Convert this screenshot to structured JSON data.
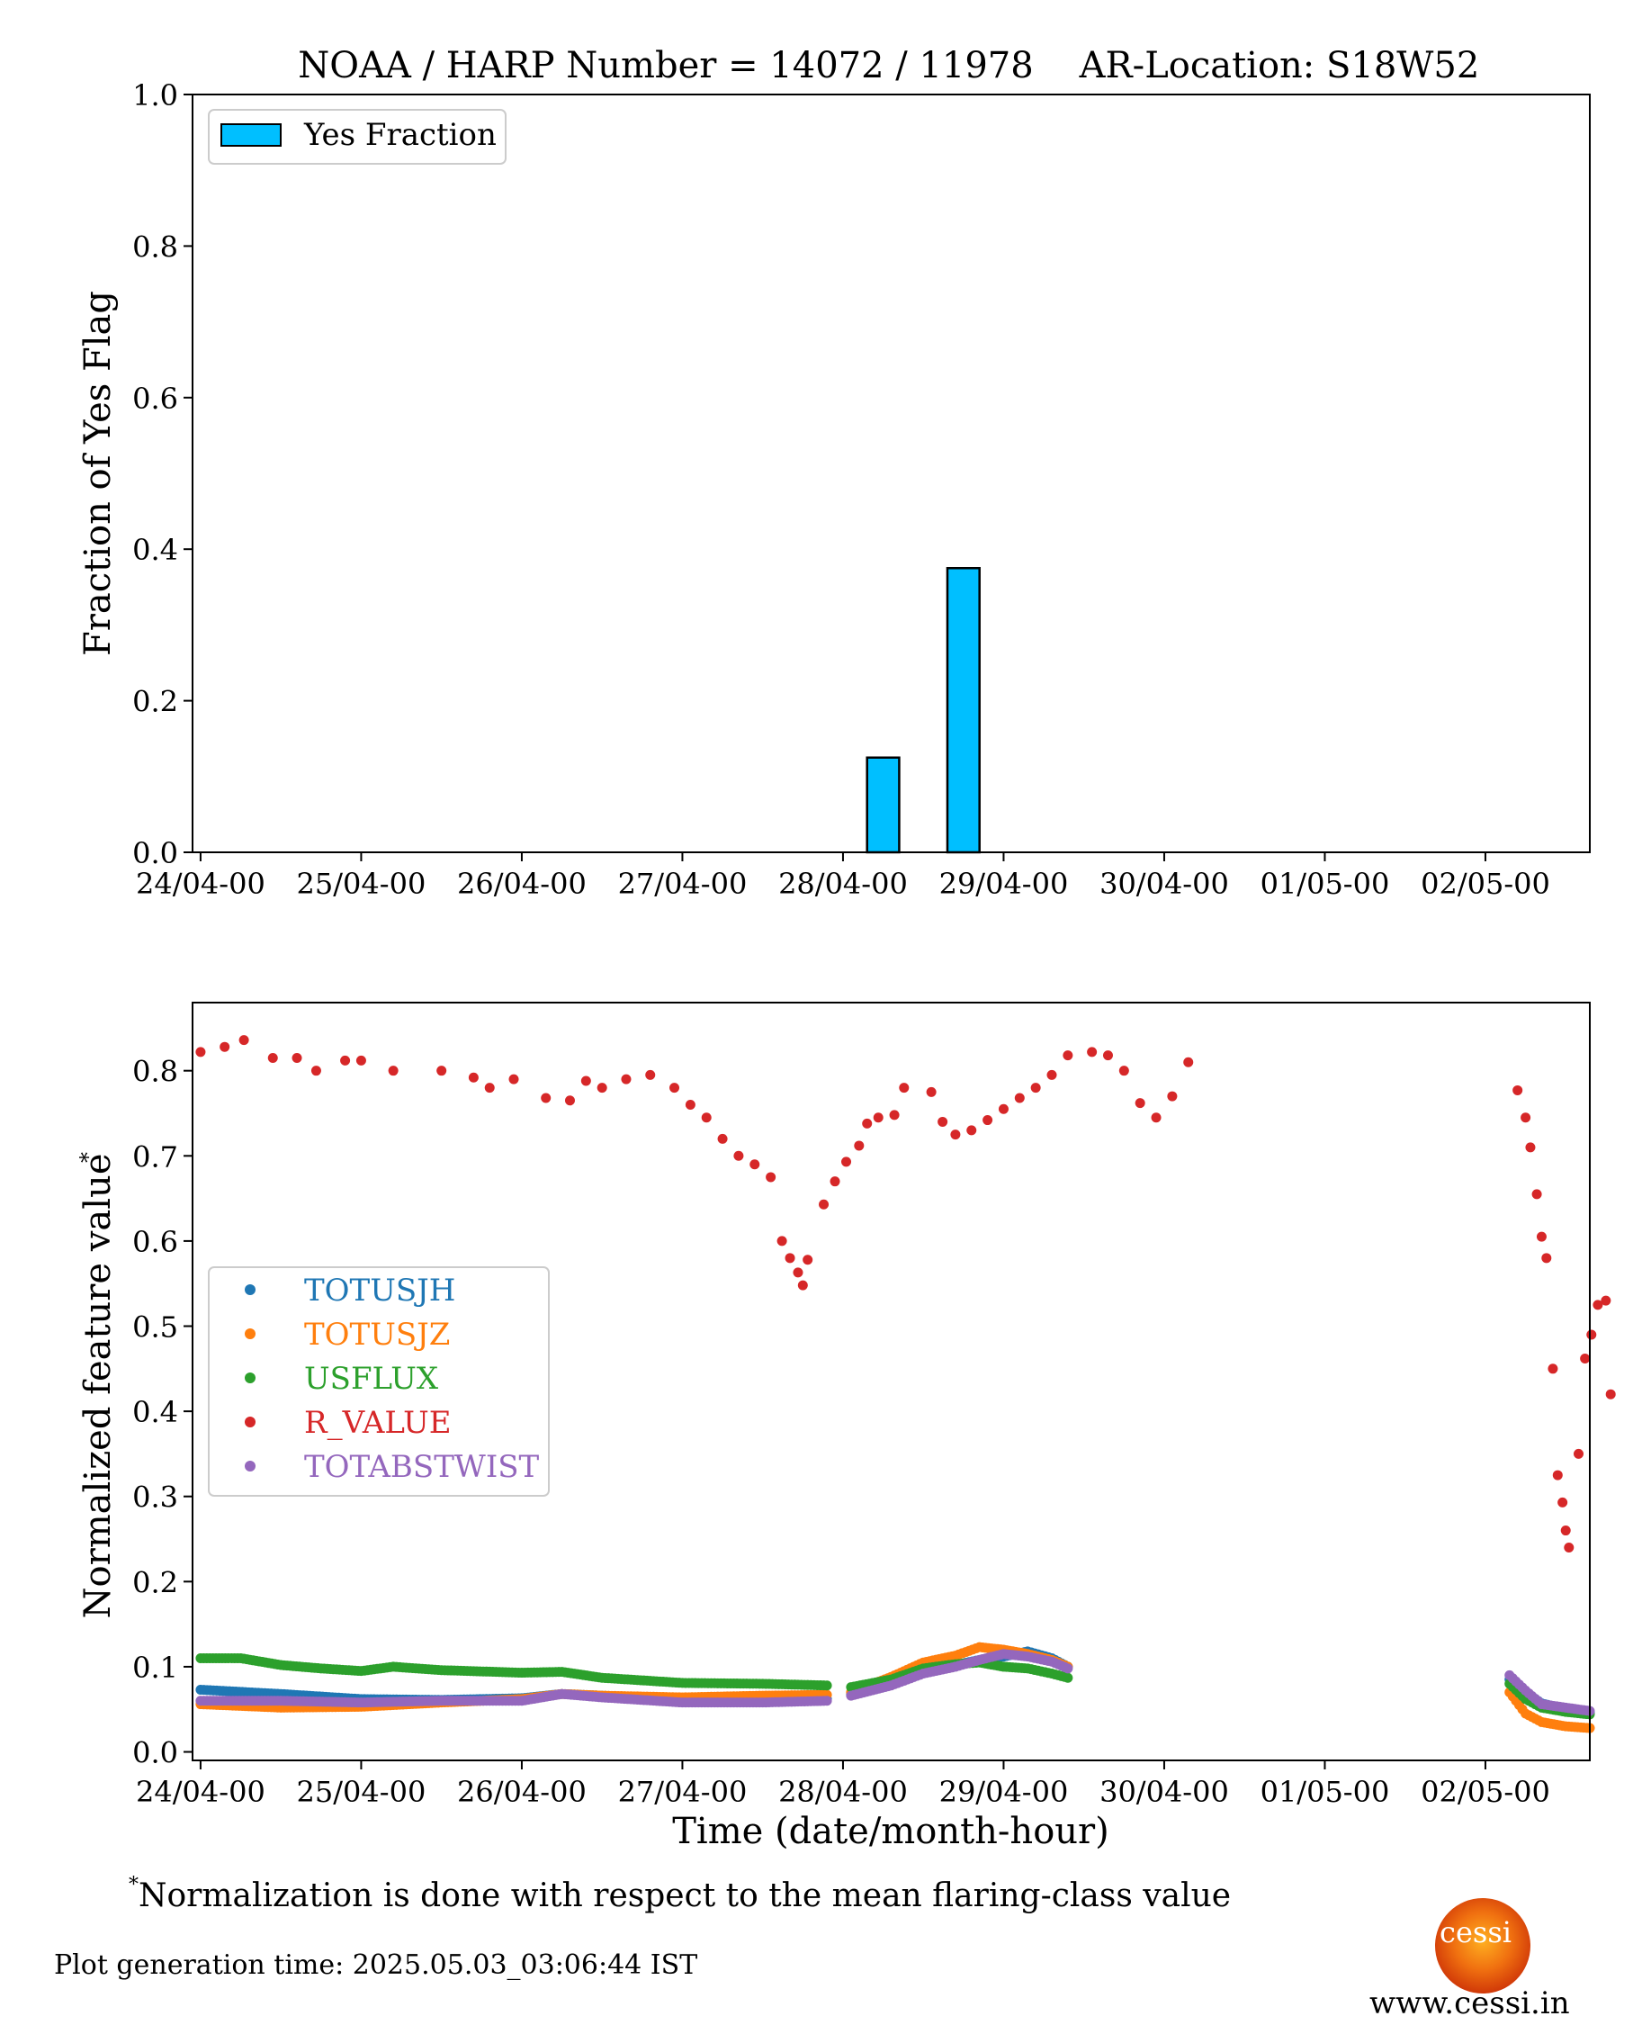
{
  "footnote": {
    "marker": "*",
    "text": "Normalization is done with respect to the mean flaring-class value"
  },
  "generation_time": "Plot generation time: 2025.05.03_03:06:44 IST",
  "logo": {
    "text": "cessi",
    "website": "www.cessi.in"
  },
  "chart_data": [
    {
      "type": "bar",
      "title_left": "NOAA / HARP Number = 14072 / 11978",
      "title_right": "AR-Location: S18W52",
      "ylabel": "Fraction of Yes Flag",
      "xlabel": "",
      "ylim": [
        0,
        1.0
      ],
      "yticks": [
        "0.0",
        "0.2",
        "0.4",
        "0.6",
        "0.8",
        "1.0"
      ],
      "xticks": [
        "24/04-00",
        "25/04-00",
        "26/04-00",
        "27/04-00",
        "28/04-00",
        "29/04-00",
        "30/04-00",
        "01/05-00",
        "02/05-00"
      ],
      "xlim_days": [
        -0.05,
        8.65
      ],
      "legend": {
        "position": "top-left",
        "entries": [
          {
            "name": "Yes Fraction",
            "color": "#00bfff"
          }
        ]
      },
      "bar_color": "#00bfff",
      "bars": [
        {
          "center_day": 4.25,
          "width_day": 0.2,
          "value": 0.125
        },
        {
          "center_day": 4.75,
          "width_day": 0.2,
          "value": 0.375
        }
      ],
      "grid": false
    },
    {
      "type": "scatter",
      "ylabel": "Normalized feature value",
      "ylabel_marker": "*",
      "xlabel": "Time (date/month-hour)",
      "ylim": [
        -0.01,
        0.88
      ],
      "yticks": [
        "0.0",
        "0.1",
        "0.2",
        "0.3",
        "0.4",
        "0.5",
        "0.6",
        "0.7",
        "0.8"
      ],
      "xticks": [
        "24/04-00",
        "25/04-00",
        "26/04-00",
        "27/04-00",
        "28/04-00",
        "29/04-00",
        "30/04-00",
        "01/05-00",
        "02/05-00"
      ],
      "xlim_days": [
        -0.05,
        8.65
      ],
      "legend": {
        "position": "center-left"
      },
      "grid": false,
      "series": [
        {
          "name": "TOTUSJH",
          "color": "#1f77b4",
          "segments": [
            [
              [
                0.0,
                0.073
              ],
              [
                0.5,
                0.068
              ],
              [
                1.0,
                0.062
              ],
              [
                1.5,
                0.061
              ],
              [
                2.0,
                0.063
              ],
              [
                2.25,
                0.068
              ],
              [
                2.5,
                0.066
              ],
              [
                3.0,
                0.062
              ],
              [
                3.5,
                0.061
              ],
              [
                3.9,
                0.062
              ]
            ],
            [
              [
                4.05,
                0.068
              ],
              [
                4.3,
                0.08
              ],
              [
                4.5,
                0.095
              ],
              [
                4.7,
                0.102
              ],
              [
                4.85,
                0.108
              ],
              [
                5.0,
                0.112
              ],
              [
                5.15,
                0.118
              ],
              [
                5.3,
                0.11
              ],
              [
                5.4,
                0.1
              ]
            ],
            [
              [
                8.15,
                0.085
              ],
              [
                8.25,
                0.07
              ],
              [
                8.35,
                0.057
              ],
              [
                8.5,
                0.05
              ],
              [
                8.65,
                0.046
              ]
            ]
          ]
        },
        {
          "name": "TOTUSJZ",
          "color": "#ff7f0e",
          "segments": [
            [
              [
                0.0,
                0.056
              ],
              [
                0.5,
                0.052
              ],
              [
                1.0,
                0.053
              ],
              [
                1.5,
                0.058
              ],
              [
                2.0,
                0.062
              ],
              [
                2.25,
                0.068
              ],
              [
                2.5,
                0.066
              ],
              [
                3.0,
                0.064
              ],
              [
                3.5,
                0.066
              ],
              [
                3.9,
                0.067
              ]
            ],
            [
              [
                4.05,
                0.07
              ],
              [
                4.3,
                0.088
              ],
              [
                4.5,
                0.105
              ],
              [
                4.7,
                0.113
              ],
              [
                4.85,
                0.123
              ],
              [
                5.0,
                0.12
              ],
              [
                5.15,
                0.115
              ],
              [
                5.3,
                0.108
              ],
              [
                5.4,
                0.1
              ]
            ],
            [
              [
                8.15,
                0.07
              ],
              [
                8.25,
                0.045
              ],
              [
                8.35,
                0.035
              ],
              [
                8.5,
                0.03
              ],
              [
                8.65,
                0.028
              ]
            ]
          ]
        },
        {
          "name": "USFLUX",
          "color": "#2ca02c",
          "segments": [
            [
              [
                0.0,
                0.11
              ],
              [
                0.25,
                0.11
              ],
              [
                0.5,
                0.102
              ],
              [
                0.75,
                0.098
              ],
              [
                1.0,
                0.095
              ],
              [
                1.2,
                0.1
              ],
              [
                1.5,
                0.096
              ],
              [
                2.0,
                0.093
              ],
              [
                2.25,
                0.094
              ],
              [
                2.5,
                0.087
              ],
              [
                3.0,
                0.081
              ],
              [
                3.5,
                0.08
              ],
              [
                3.9,
                0.078
              ]
            ],
            [
              [
                4.05,
                0.076
              ],
              [
                4.3,
                0.085
              ],
              [
                4.5,
                0.098
              ],
              [
                4.7,
                0.103
              ],
              [
                4.85,
                0.105
              ],
              [
                5.0,
                0.1
              ],
              [
                5.15,
                0.098
              ],
              [
                5.3,
                0.092
              ],
              [
                5.4,
                0.087
              ]
            ],
            [
              [
                8.15,
                0.08
              ],
              [
                8.25,
                0.062
              ],
              [
                8.35,
                0.052
              ],
              [
                8.5,
                0.047
              ],
              [
                8.65,
                0.044
              ]
            ]
          ]
        },
        {
          "name": "R_VALUE",
          "color": "#d62728",
          "segments": [
            [
              [
                0.0,
                0.822
              ],
              [
                0.15,
                0.828
              ],
              [
                0.27,
                0.836
              ],
              [
                0.45,
                0.815
              ],
              [
                0.6,
                0.815
              ],
              [
                0.72,
                0.8
              ],
              [
                0.9,
                0.812
              ],
              [
                1.0,
                0.812
              ],
              [
                1.2,
                0.8
              ],
              [
                1.5,
                0.8
              ],
              [
                1.7,
                0.792
              ],
              [
                1.8,
                0.78
              ],
              [
                1.95,
                0.79
              ],
              [
                2.15,
                0.768
              ],
              [
                2.3,
                0.765
              ],
              [
                2.4,
                0.788
              ],
              [
                2.5,
                0.78
              ],
              [
                2.65,
                0.79
              ],
              [
                2.8,
                0.795
              ],
              [
                2.95,
                0.78
              ],
              [
                3.05,
                0.76
              ],
              [
                3.15,
                0.745
              ],
              [
                3.25,
                0.72
              ],
              [
                3.35,
                0.7
              ],
              [
                3.45,
                0.69
              ],
              [
                3.55,
                0.675
              ],
              [
                3.62,
                0.6
              ],
              [
                3.67,
                0.58
              ],
              [
                3.72,
                0.563
              ],
              [
                3.75,
                0.548
              ],
              [
                3.78,
                0.578
              ],
              [
                3.88,
                0.643
              ],
              [
                3.95,
                0.67
              ],
              [
                4.02,
                0.693
              ],
              [
                4.1,
                0.712
              ],
              [
                4.15,
                0.738
              ],
              [
                4.22,
                0.745
              ],
              [
                4.32,
                0.748
              ],
              [
                4.38,
                0.78
              ]
            ],
            [
              [
                4.55,
                0.775
              ],
              [
                4.62,
                0.74
              ],
              [
                4.7,
                0.725
              ],
              [
                4.8,
                0.73
              ],
              [
                4.9,
                0.742
              ],
              [
                5.0,
                0.755
              ],
              [
                5.1,
                0.768
              ],
              [
                5.2,
                0.78
              ],
              [
                5.3,
                0.795
              ],
              [
                5.4,
                0.818
              ],
              [
                5.55,
                0.822
              ],
              [
                5.65,
                0.818
              ],
              [
                5.75,
                0.8
              ],
              [
                5.85,
                0.762
              ],
              [
                5.95,
                0.745
              ],
              [
                6.05,
                0.77
              ],
              [
                6.15,
                0.81
              ]
            ],
            [
              [
                8.2,
                0.777
              ],
              [
                8.25,
                0.745
              ],
              [
                8.28,
                0.71
              ],
              [
                8.32,
                0.655
              ],
              [
                8.35,
                0.605
              ],
              [
                8.38,
                0.58
              ],
              [
                8.42,
                0.45
              ],
              [
                8.45,
                0.325
              ],
              [
                8.48,
                0.293
              ],
              [
                8.5,
                0.26
              ],
              [
                8.52,
                0.24
              ],
              [
                8.58,
                0.35
              ],
              [
                8.62,
                0.462
              ],
              [
                8.66,
                0.49
              ],
              [
                8.7,
                0.525
              ],
              [
                8.75,
                0.53
              ],
              [
                8.78,
                0.42
              ]
            ]
          ]
        },
        {
          "name": "TOTABSTWIST",
          "color": "#9467bd",
          "segments": [
            [
              [
                0.0,
                0.06
              ],
              [
                0.5,
                0.06
              ],
              [
                1.0,
                0.058
              ],
              [
                1.5,
                0.06
              ],
              [
                2.0,
                0.06
              ],
              [
                2.25,
                0.068
              ],
              [
                2.5,
                0.064
              ],
              [
                3.0,
                0.058
              ],
              [
                3.5,
                0.058
              ],
              [
                3.9,
                0.06
              ]
            ],
            [
              [
                4.05,
                0.066
              ],
              [
                4.3,
                0.078
              ],
              [
                4.5,
                0.092
              ],
              [
                4.7,
                0.1
              ],
              [
                4.85,
                0.108
              ],
              [
                5.0,
                0.115
              ],
              [
                5.15,
                0.112
              ],
              [
                5.3,
                0.106
              ],
              [
                5.4,
                0.098
              ]
            ],
            [
              [
                8.15,
                0.09
              ],
              [
                8.25,
                0.072
              ],
              [
                8.35,
                0.056
              ],
              [
                8.5,
                0.052
              ],
              [
                8.65,
                0.048
              ]
            ]
          ]
        }
      ]
    }
  ]
}
